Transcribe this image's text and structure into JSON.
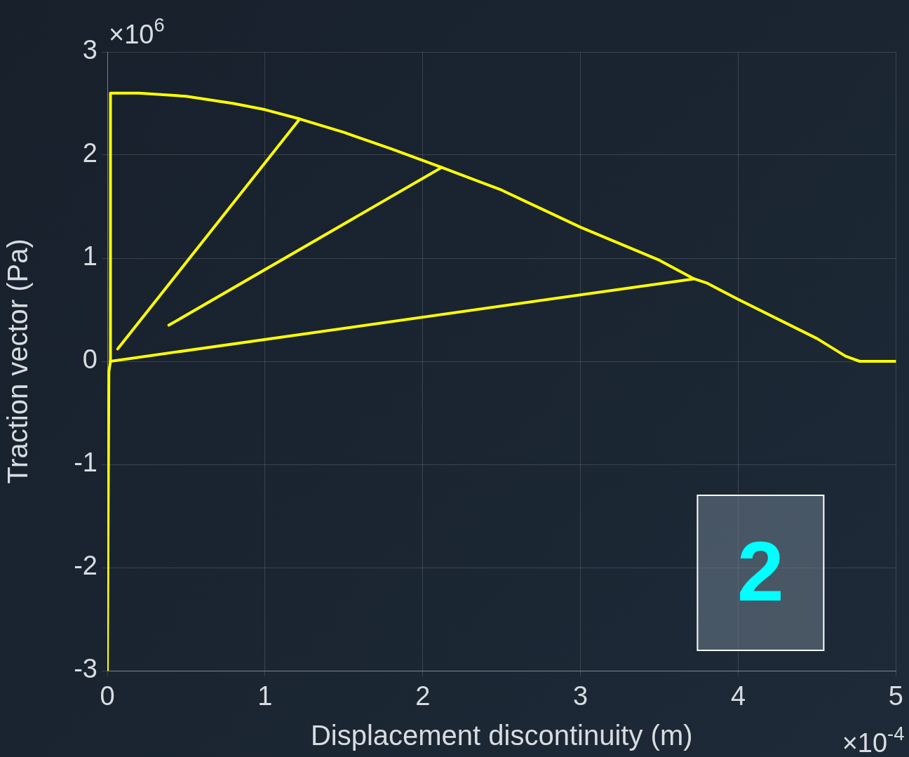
{
  "chart_data": {
    "type": "line",
    "xlabel": "Displacement discontinuity (m)",
    "ylabel": "Traction vector (Pa)",
    "annotations": [
      "×10$^{6}$",
      "×10$^{-4}$",
      "2"
    ],
    "xlim": [
      0,
      5
    ],
    "ylim": [
      -3,
      3
    ],
    "xticks": [
      0,
      1,
      2,
      3,
      4,
      5
    ],
    "yticks": [
      -3,
      -2,
      -1,
      0,
      1,
      2,
      3
    ],
    "grid": true,
    "marker": "none",
    "series": [
      {
        "color": "#ffff00",
        "x": [
          0,
          0.01,
          0.02,
          0.02,
          0.2,
          0.5,
          0.8,
          1.0,
          1.22,
          1.5,
          1.8,
          2.12,
          2.5,
          3.0,
          3.5,
          3.72,
          3.8,
          4.0,
          4.5,
          4.68,
          4.77,
          5
        ],
        "values": [
          -3,
          -0.1,
          0,
          2.6,
          2.6,
          2.57,
          2.5,
          2.44,
          2.35,
          2.22,
          2.06,
          1.88,
          1.66,
          1.3,
          0.98,
          0.8,
          0.76,
          0.6,
          0.22,
          0.05,
          0,
          0
        ]
      },
      {
        "color": "#ffff00",
        "x": [
          0.066,
          1.22
        ],
        "values": [
          0.12,
          2.35
        ]
      },
      {
        "color": "#ffff00",
        "x": [
          0.39,
          2.12
        ],
        "values": [
          0.35,
          1.88
        ]
      },
      {
        "color": "#ffff00",
        "x": [
          0.02,
          3.72
        ],
        "values": [
          0,
          0.8
        ]
      }
    ]
  }
}
